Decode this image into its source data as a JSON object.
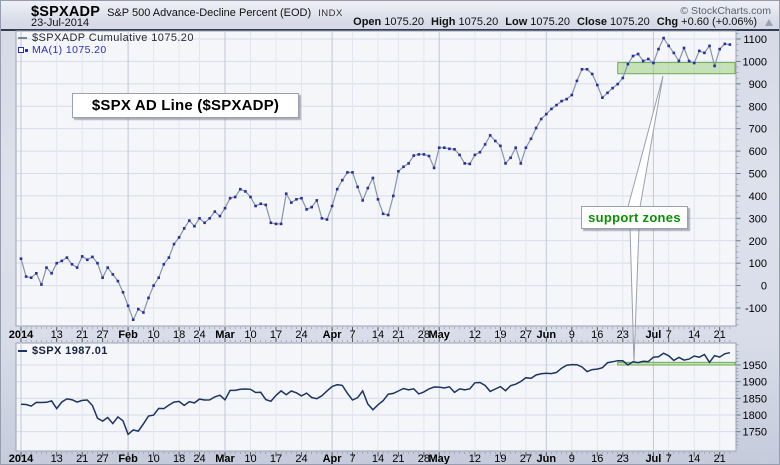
{
  "header": {
    "symbol": "$SPXADP",
    "description": "S&P 500 Advance-Decline Percent (EOD)",
    "exchange": "INDX",
    "date": "23-Jul-2014",
    "copyright": "© StockCharts.com",
    "quote": {
      "open_label": "Open",
      "open": "1075.20",
      "high_label": "High",
      "high": "1075.20",
      "low_label": "Low",
      "low": "1075.20",
      "close_label": "Close",
      "close": "1075.20",
      "chg_label": "Chg",
      "chg": "+0.60 (+0.06%)",
      "chg_direction": "up"
    }
  },
  "legends": {
    "main_line1": "$SPXADP Cumulative 1075.20",
    "main_line2": "MA(1) 1075.20",
    "lower": "$SPX 1987.01"
  },
  "annotations": {
    "ad_line_label": "$SPX AD Line ($SPXADP)",
    "support_zones_label": "support zones"
  },
  "colors": {
    "ad_line": "#8794ab",
    "ad_marker": "#252f9e",
    "spx_line": "#1c3560",
    "support_fill": "rgba(148,204,118,0.5)",
    "support_border": "rgba(106,168,79,0.95)",
    "annotation_green": "#089000",
    "grid_week": "#e3e6ee",
    "grid_month": "#c0c7d5",
    "grid_horizontal": "#d8dce6",
    "plot_bg": "#f5f6fa",
    "plot_border": "#99a1b2"
  },
  "chart_data": [
    {
      "type": "line",
      "title": "$SPXADP Cumulative with MA(1) overlay (dotted squares)",
      "ylim": [
        -180,
        1136
      ],
      "y_ticks": [
        1100,
        1000,
        900,
        800,
        700,
        600,
        500,
        400,
        300,
        200,
        100,
        0,
        -100
      ],
      "x_ticks": [
        {
          "index": 0,
          "label": "2014",
          "bold": true
        },
        {
          "index": 7,
          "label": "13"
        },
        {
          "index": 12,
          "label": "21"
        },
        {
          "index": 16,
          "label": "27"
        },
        {
          "index": 21,
          "label": "Feb",
          "bold": true
        },
        {
          "index": 26,
          "label": "10"
        },
        {
          "index": 31,
          "label": "18"
        },
        {
          "index": 35,
          "label": "24"
        },
        {
          "index": 40,
          "label": "Mar",
          "bold": true
        },
        {
          "index": 45,
          "label": "10"
        },
        {
          "index": 50,
          "label": "17"
        },
        {
          "index": 55,
          "label": "24"
        },
        {
          "index": 61,
          "label": "Apr",
          "bold": true
        },
        {
          "index": 65,
          "label": "7"
        },
        {
          "index": 70,
          "label": "14"
        },
        {
          "index": 74,
          "label": "21"
        },
        {
          "index": 79,
          "label": "28"
        },
        {
          "index": 82,
          "label": "May",
          "bold": true
        },
        {
          "index": 89,
          "label": "12"
        },
        {
          "index": 94,
          "label": "19"
        },
        {
          "index": 99,
          "label": "27"
        },
        {
          "index": 103,
          "label": "Jun",
          "bold": true
        },
        {
          "index": 108,
          "label": "9"
        },
        {
          "index": 113,
          "label": "16"
        },
        {
          "index": 118,
          "label": "23"
        },
        {
          "index": 124,
          "label": "Jul",
          "bold": true
        },
        {
          "index": 127,
          "label": "7"
        },
        {
          "index": 132,
          "label": "14"
        },
        {
          "index": 137,
          "label": "21"
        }
      ],
      "series": [
        {
          "name": "$SPXADP Cumulative",
          "last_value": 1075.2,
          "values": [
            120,
            40,
            35,
            55,
            5,
            80,
            55,
            100,
            110,
            125,
            95,
            80,
            130,
            115,
            128,
            100,
            35,
            80,
            50,
            20,
            -30,
            -90,
            -152,
            -105,
            -120,
            -55,
            0,
            35,
            95,
            125,
            185,
            215,
            255,
            290,
            265,
            300,
            280,
            300,
            330,
            310,
            345,
            390,
            395,
            430,
            420,
            395,
            355,
            365,
            360,
            280,
            275,
            275,
            410,
            370,
            385,
            390,
            340,
            350,
            380,
            300,
            295,
            355,
            430,
            470,
            505,
            505,
            440,
            380,
            435,
            480,
            385,
            320,
            315,
            400,
            510,
            530,
            545,
            580,
            585,
            585,
            578,
            525,
            615,
            615,
            610,
            608,
            583,
            545,
            543,
            583,
            595,
            630,
            670,
            645,
            623,
            545,
            570,
            615,
            545,
            615,
            655,
            703,
            743,
            765,
            788,
            805,
            823,
            832,
            850,
            913,
            965,
            965,
            944,
            895,
            838,
            860,
            881,
            899,
            926,
            988,
            1024,
            1033,
            1002,
            1011,
            993,
            1055,
            1104,
            1069,
            1038,
            1002,
            1060,
            1002,
            993,
            1047,
            1038,
            1069,
            980,
            1055,
            1078,
            1075.2
          ]
        },
        {
          "name": "MA(1)",
          "last_value": 1075.2,
          "style": "square-markers",
          "values_same_as": "$SPXADP Cumulative"
        }
      ],
      "support_zone": {
        "start_index": 117,
        "value_low": 945,
        "value_high": 995
      }
    },
    {
      "type": "line",
      "title": "$SPX",
      "ylim": [
        1692,
        2016
      ],
      "y_ticks": [
        1950,
        1900,
        1850,
        1800,
        1750
      ],
      "x_ticks_same_as_above": true,
      "series": [
        {
          "name": "$SPX",
          "last_value": 1987.01,
          "values": [
            1831.98,
            1831.37,
            1826.77,
            1837.88,
            1837.49,
            1838.13,
            1842.37,
            1819.2,
            1838.88,
            1848.38,
            1845.89,
            1838.7,
            1843.8,
            1844.86,
            1828.46,
            1790.29,
            1781.56,
            1792.5,
            1774.2,
            1794.19,
            1782.59,
            1741.89,
            1755.2,
            1751.64,
            1773.43,
            1797.02,
            1799.84,
            1819.75,
            1819.26,
            1829.83,
            1838.63,
            1840.76,
            1828.75,
            1839.78,
            1836.25,
            1847.61,
            1845.12,
            1845.16,
            1854.29,
            1859.45,
            1845.73,
            1873.91,
            1873.81,
            1877.03,
            1878.04,
            1877.17,
            1867.63,
            1868.2,
            1846.34,
            1841.13,
            1858.83,
            1872.25,
            1860.77,
            1872.01,
            1866.52,
            1857.44,
            1865.62,
            1852.56,
            1849.04,
            1857.62,
            1872.34,
            1885.52,
            1890.9,
            1888.77,
            1865.09,
            1845.04,
            1851.96,
            1872.18,
            1833.08,
            1815.69,
            1830.61,
            1842.98,
            1862.31,
            1864.85,
            1871.89,
            1879.55,
            1875.39,
            1878.61,
            1863.4,
            1869.43,
            1878.33,
            1883.95,
            1883.68,
            1881.14,
            1884.66,
            1867.72,
            1878.21,
            1875.63,
            1878.48,
            1896.65,
            1897.45,
            1888.53,
            1870.85,
            1877.86,
            1885.08,
            1872.83,
            1888.03,
            1892.49,
            1900.53,
            1911.91,
            1909.78,
            1920.03,
            1923.57,
            1924.97,
            1924.24,
            1927.88,
            1940.46,
            1949.44,
            1951.27,
            1950.79,
            1943.89,
            1930.11,
            1936.16,
            1937.78,
            1941.99,
            1956.98,
            1959.48,
            1962.87,
            1962.61,
            1949.98,
            1959.53,
            1957.22,
            1960.96,
            1960.23,
            1973.32,
            1974.62,
            1985.44,
            1977.65,
            1963.71,
            1972.83,
            1964.68,
            1967.57,
            1977.1,
            1973.28,
            1981.57,
            1958.12,
            1978.22,
            1973.63,
            1983.53,
            1987.01
          ]
        }
      ],
      "support_zone": {
        "start_index": 117,
        "value_low": 1950,
        "value_high": 1958
      }
    }
  ]
}
